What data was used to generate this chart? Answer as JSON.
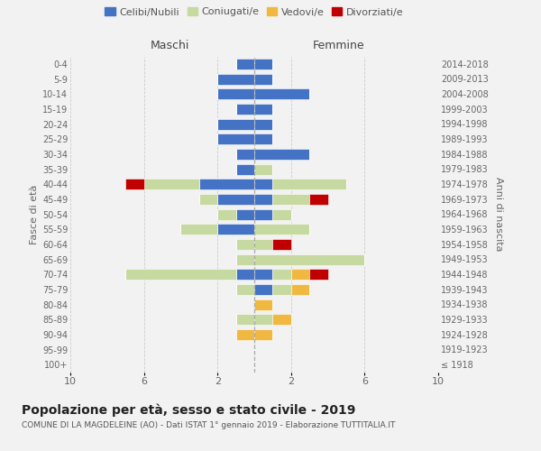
{
  "age_groups": [
    "100+",
    "95-99",
    "90-94",
    "85-89",
    "80-84",
    "75-79",
    "70-74",
    "65-69",
    "60-64",
    "55-59",
    "50-54",
    "45-49",
    "40-44",
    "35-39",
    "30-34",
    "25-29",
    "20-24",
    "15-19",
    "10-14",
    "5-9",
    "0-4"
  ],
  "birth_years": [
    "≤ 1918",
    "1919-1923",
    "1924-1928",
    "1929-1933",
    "1934-1938",
    "1939-1943",
    "1944-1948",
    "1949-1953",
    "1954-1958",
    "1959-1963",
    "1964-1968",
    "1969-1973",
    "1974-1978",
    "1979-1983",
    "1984-1988",
    "1989-1993",
    "1994-1998",
    "1999-2003",
    "2004-2008",
    "2009-2013",
    "2014-2018"
  ],
  "males": {
    "celibi": [
      0,
      0,
      0,
      0,
      0,
      0,
      1,
      0,
      0,
      2,
      1,
      2,
      3,
      1,
      1,
      2,
      2,
      1,
      2,
      2,
      1
    ],
    "coniugati": [
      0,
      0,
      0,
      1,
      0,
      1,
      6,
      1,
      1,
      2,
      1,
      1,
      3,
      0,
      0,
      0,
      0,
      0,
      0,
      0,
      0
    ],
    "vedovi": [
      0,
      0,
      1,
      0,
      0,
      0,
      0,
      0,
      0,
      0,
      0,
      0,
      0,
      0,
      0,
      0,
      0,
      0,
      0,
      0,
      0
    ],
    "divorziati": [
      0,
      0,
      0,
      0,
      0,
      0,
      0,
      0,
      0,
      0,
      0,
      0,
      1,
      0,
      0,
      0,
      0,
      0,
      0,
      0,
      0
    ]
  },
  "females": {
    "nubili": [
      0,
      0,
      0,
      0,
      0,
      1,
      1,
      0,
      0,
      0,
      1,
      1,
      1,
      0,
      3,
      1,
      1,
      1,
      3,
      1,
      1
    ],
    "coniugate": [
      0,
      0,
      0,
      1,
      0,
      1,
      1,
      6,
      1,
      3,
      1,
      2,
      4,
      1,
      0,
      0,
      0,
      0,
      0,
      0,
      0
    ],
    "vedove": [
      0,
      0,
      1,
      1,
      1,
      1,
      1,
      0,
      0,
      0,
      0,
      0,
      0,
      0,
      0,
      0,
      0,
      0,
      0,
      0,
      0
    ],
    "divorziate": [
      0,
      0,
      0,
      0,
      0,
      0,
      1,
      0,
      1,
      0,
      0,
      1,
      0,
      0,
      0,
      0,
      0,
      0,
      0,
      0,
      0
    ]
  },
  "colors": {
    "celibi_nubili": "#4472c4",
    "coniugati_e": "#c5d9a0",
    "vedovi_e": "#f0b840",
    "divorziati_e": "#c00000"
  },
  "title": "Popolazione per età, sesso e stato civile - 2019",
  "subtitle": "COMUNE DI LA MAGDELEINE (AO) - Dati ISTAT 1° gennaio 2019 - Elaborazione TUTTITALIA.IT",
  "label_maschi": "Maschi",
  "label_femmine": "Femmine",
  "ylabel_left": "Fasce di età",
  "ylabel_right": "Anni di nascita",
  "xlim": 10,
  "xtick_pos": [
    -10,
    -6,
    -2,
    2,
    6,
    10
  ],
  "xtick_labels": [
    "10",
    "6",
    "2",
    "2",
    "6",
    "10"
  ],
  "legend_labels": [
    "Celibi/Nubili",
    "Coniugati/e",
    "Vedovi/e",
    "Divorziati/e"
  ],
  "bg_color": "#f2f2f2"
}
